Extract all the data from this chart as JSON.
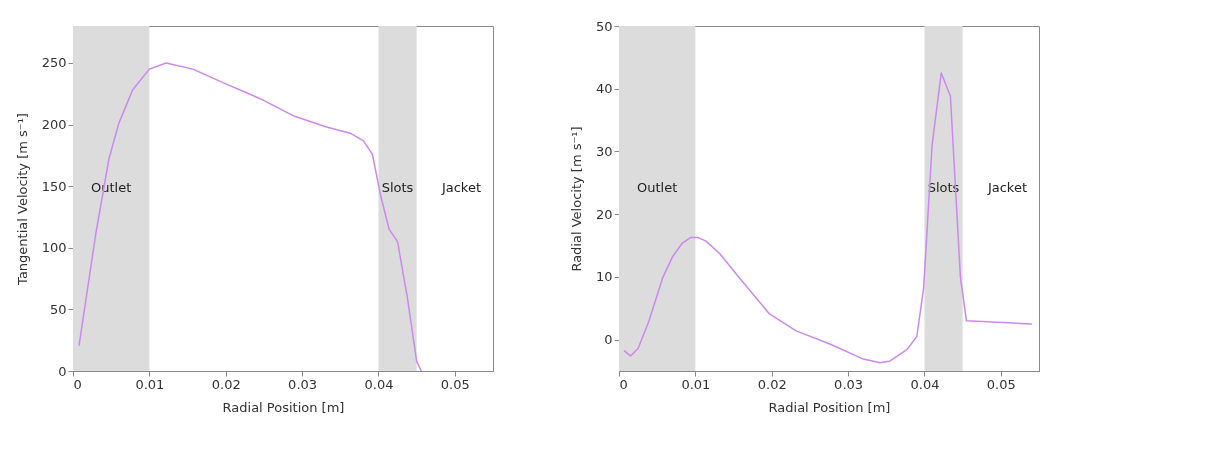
{
  "chart_data": [
    {
      "type": "line",
      "xlabel": "Radial Position [m]",
      "ylabel": "Tangential Velocity [m s⁻¹]",
      "xlim": [
        0,
        0.055
      ],
      "ylim": [
        0,
        280
      ],
      "xticks": [
        0,
        0.01,
        0.02,
        0.03,
        0.04,
        0.05
      ],
      "yticks": [
        0,
        50,
        100,
        150,
        200,
        250
      ],
      "grid": false,
      "x": [
        0.0008,
        0.003,
        0.0047,
        0.006,
        0.0078,
        0.01,
        0.0122,
        0.0157,
        0.02,
        0.0245,
        0.0289,
        0.0332,
        0.0363,
        0.038,
        0.0392,
        0.0403,
        0.0414,
        0.0425,
        0.0438,
        0.045,
        0.0456
      ],
      "series": [
        {
          "color": "#cc88ee",
          "values": [
            21,
            112,
            172,
            201,
            228,
            245,
            250,
            245,
            233,
            221,
            207,
            198,
            193,
            187,
            176,
            142,
            115,
            105,
            59,
            8,
            0
          ]
        }
      ],
      "bands": [
        {
          "axis": "x",
          "from": 0,
          "to": 0.01,
          "label": "Outlet",
          "color": "#dcdcdc"
        },
        {
          "axis": "x",
          "from": 0.04,
          "to": 0.045,
          "label": "Slots",
          "color": "#dcdcdc"
        }
      ],
      "annotations": [
        "Jacket"
      ]
    },
    {
      "type": "line",
      "xlabel": "Radial Position [m]",
      "ylabel": "Radial Velocity [m s⁻¹]",
      "xlim": [
        0,
        0.055
      ],
      "ylim": [
        -5,
        50
      ],
      "xticks": [
        0,
        0.01,
        0.02,
        0.03,
        0.04,
        0.05
      ],
      "yticks": [
        0,
        10,
        20,
        30,
        40,
        50
      ],
      "grid": false,
      "x": [
        0.0007,
        0.0015,
        0.0025,
        0.0039,
        0.0057,
        0.007,
        0.0083,
        0.0094,
        0.0103,
        0.0114,
        0.0132,
        0.0158,
        0.0197,
        0.0232,
        0.0276,
        0.032,
        0.0342,
        0.0355,
        0.0377,
        0.039,
        0.0399,
        0.041,
        0.0422,
        0.0434,
        0.0447,
        0.0455,
        0.054
      ],
      "series": [
        {
          "color": "#cc88ee",
          "values": [
            -1.8,
            -2.6,
            -1.4,
            2.9,
            9.8,
            13.2,
            15.4,
            16.3,
            16.3,
            15.7,
            13.7,
            9.8,
            4.1,
            1.4,
            -0.7,
            -3.1,
            -3.7,
            -3.4,
            -1.6,
            0.5,
            8.3,
            31,
            42.5,
            38.8,
            10.1,
            3.0,
            2.5
          ]
        }
      ],
      "bands": [
        {
          "axis": "x",
          "from": 0,
          "to": 0.01,
          "label": "Outlet",
          "color": "#dcdcdc"
        },
        {
          "axis": "x",
          "from": 0.04,
          "to": 0.045,
          "label": "Slots",
          "color": "#dcdcdc"
        }
      ],
      "annotations": [
        "Jacket"
      ]
    }
  ]
}
